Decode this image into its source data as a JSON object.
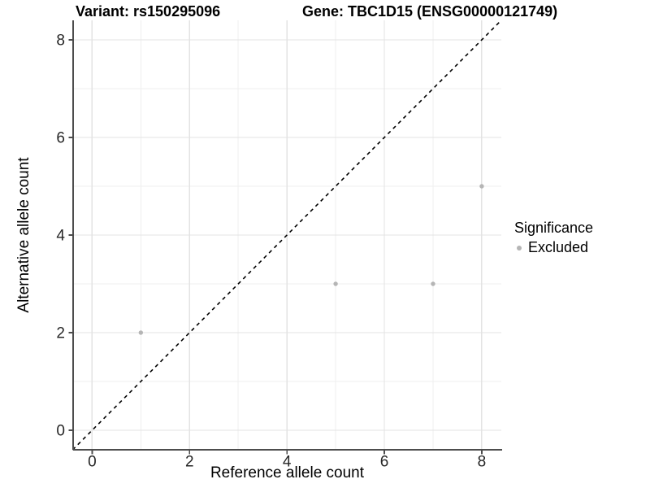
{
  "chart_data": {
    "type": "scatter",
    "title_variant": "Variant: rs150295096",
    "title_gene": "Gene: TBC1D15 (ENSG00000121749)",
    "x": {
      "label": "Reference allele count",
      "ticks": [
        0,
        2,
        4,
        6,
        8
      ],
      "minor_ticks": [
        1,
        3,
        5,
        7
      ],
      "range": [
        -0.4,
        8.4
      ]
    },
    "y": {
      "label": "Alternative allele count",
      "ticks": [
        0,
        2,
        4,
        6,
        8
      ],
      "minor_ticks": [
        1,
        3,
        5,
        7
      ],
      "range": [
        -0.4,
        8.4
      ]
    },
    "series": [
      {
        "name": "Excluded",
        "color": "#b5b5b5",
        "point_radius": 2.7,
        "points": [
          [
            1,
            2
          ],
          [
            5,
            3
          ],
          [
            7,
            3
          ],
          [
            8,
            5
          ]
        ]
      }
    ],
    "reference_line": {
      "type": "identity",
      "style": "dashed",
      "color": "#000000",
      "from": [
        -0.4,
        -0.4
      ],
      "to": [
        8.4,
        8.4
      ]
    },
    "grid": true,
    "legend": {
      "title": "Significance",
      "position": "right",
      "items": [
        {
          "label": "Excluded",
          "color": "#b5b5b5"
        }
      ]
    }
  },
  "colors": {
    "axis": "#4d4d4d",
    "tick_text": "#262626",
    "grid_major": "#e3e3e3",
    "grid_minor": "#efefef",
    "background": "#ffffff"
  }
}
